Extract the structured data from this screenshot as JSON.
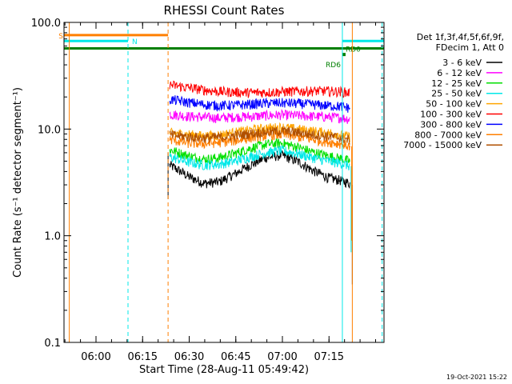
{
  "chart_data": {
    "type": "line",
    "title": "RHESSI Count Rates",
    "ylabel": "Count Rate (s⁻¹ detector segment⁻¹)",
    "xlabel": "Start Time (28-Aug-11 05:49:42)",
    "yscale": "log",
    "ylim": [
      0.1,
      100
    ],
    "xlim_minutes": [
      0,
      103
    ],
    "yticks": [
      {
        "value": 100,
        "label": "100.0"
      },
      {
        "value": 10,
        "label": "10.0"
      },
      {
        "value": 1,
        "label": "1.0"
      },
      {
        "value": 0.1,
        "label": "0.1"
      }
    ],
    "xticks": [
      {
        "minute": 10.3,
        "label": "06:00"
      },
      {
        "minute": 25.3,
        "label": "06:15"
      },
      {
        "minute": 40.3,
        "label": "06:30"
      },
      {
        "minute": 55.3,
        "label": "06:45"
      },
      {
        "minute": 70.3,
        "label": "07:00"
      },
      {
        "minute": 85.3,
        "label": "07:15"
      }
    ],
    "legend": {
      "header": [
        "Det 1f,3f,4f,5f,6f,9f,",
        "FDecim 1, Att 0"
      ],
      "placement": "right",
      "entries": [
        {
          "label": "3 - 6 keV",
          "color": "#000000"
        },
        {
          "label": "6 - 12 keV",
          "color": "#ff00ff"
        },
        {
          "label": "12 - 25 keV",
          "color": "#00e000"
        },
        {
          "label": "25 - 50 keV",
          "color": "#00e8e8"
        },
        {
          "label": "50 - 100 keV",
          "color": "#ffa500"
        },
        {
          "label": "100 - 300 keV",
          "color": "#ff0000"
        },
        {
          "label": "300 - 800 keV",
          "color": "#0000ff"
        },
        {
          "label": "800 - 7000 keV",
          "color": "#ff7f00"
        },
        {
          "label": "7000 - 15000 keV",
          "color": "#b05000"
        }
      ]
    },
    "data_window_minutes": [
      33.5,
      92.8
    ],
    "series": [
      {
        "name": "3 - 6 keV",
        "color": "#000000",
        "x": [
          34,
          40,
          45,
          50,
          55,
          60,
          65,
          70,
          75,
          80,
          85,
          89,
          92
        ],
        "y": [
          4.6,
          3.6,
          3.1,
          3.2,
          3.8,
          4.6,
          5.4,
          5.7,
          5.0,
          4.1,
          3.5,
          3.3,
          3.1
        ]
      },
      {
        "name": "6 - 12 keV",
        "color": "#ff00ff",
        "x": [
          34,
          40,
          45,
          50,
          55,
          60,
          65,
          70,
          75,
          80,
          85,
          89,
          92
        ],
        "y": [
          13.8,
          13.2,
          12.9,
          12.7,
          13.0,
          13.1,
          13.4,
          13.6,
          13.4,
          13.2,
          13.0,
          12.8,
          12.4
        ]
      },
      {
        "name": "12 - 25 keV",
        "color": "#00e000",
        "x": [
          34,
          40,
          45,
          50,
          55,
          60,
          65,
          70,
          75,
          80,
          85,
          89,
          92
        ],
        "y": [
          6.4,
          5.6,
          5.2,
          5.4,
          5.9,
          6.6,
          7.2,
          7.4,
          6.8,
          6.1,
          5.6,
          5.3,
          5.0
        ]
      },
      {
        "name": "25 - 50 keV",
        "color": "#00e8e8",
        "x": [
          34,
          40,
          45,
          50,
          55,
          60,
          65,
          70,
          75,
          80,
          85,
          89,
          92
        ],
        "y": [
          5.5,
          4.9,
          4.6,
          4.7,
          5.0,
          5.5,
          6.0,
          6.3,
          5.9,
          5.4,
          5.0,
          4.8,
          4.5
        ]
      },
      {
        "name": "50 - 100 keV",
        "color": "#ffa500",
        "x": [
          34,
          40,
          45,
          50,
          55,
          60,
          65,
          70,
          75,
          80,
          85,
          89,
          92
        ],
        "y": [
          9.2,
          8.9,
          8.6,
          8.8,
          9.3,
          9.8,
          10.2,
          10.4,
          10.0,
          9.6,
          9.2,
          8.9,
          8.4
        ]
      },
      {
        "name": "100 - 300 keV",
        "color": "#ff0000",
        "x": [
          34,
          40,
          45,
          50,
          55,
          60,
          65,
          70,
          75,
          80,
          85,
          89,
          92
        ],
        "y": [
          26.0,
          24.5,
          23.3,
          22.5,
          22.2,
          22.0,
          22.1,
          22.4,
          22.6,
          22.8,
          22.7,
          22.4,
          22.0
        ]
      },
      {
        "name": "300 - 800 keV",
        "color": "#0000ff",
        "x": [
          34,
          40,
          45,
          50,
          55,
          60,
          65,
          70,
          75,
          80,
          85,
          89,
          92
        ],
        "y": [
          19.0,
          17.8,
          17.0,
          16.6,
          16.8,
          17.1,
          17.5,
          17.6,
          17.4,
          17.0,
          16.6,
          16.3,
          15.8
        ]
      },
      {
        "name": "800 - 7000 keV",
        "color": "#ff7f00",
        "x": [
          34,
          40,
          45,
          50,
          55,
          60,
          65,
          70,
          75,
          80,
          85,
          89,
          92
        ],
        "y": [
          8.0,
          7.4,
          7.3,
          7.5,
          7.8,
          8.3,
          8.7,
          8.9,
          8.5,
          8.0,
          7.6,
          7.3,
          6.9
        ]
      },
      {
        "name": "7000 - 15000 keV",
        "color": "#b05000",
        "x": [
          34,
          40,
          45,
          50,
          55,
          60,
          65,
          70,
          75,
          80,
          85,
          89,
          92
        ],
        "y": [
          8.8,
          8.5,
          8.3,
          8.4,
          8.7,
          9.1,
          9.4,
          9.6,
          9.3,
          8.9,
          8.6,
          8.3,
          7.9
        ]
      }
    ],
    "spikes": [
      {
        "color": "#000000",
        "minute": 33.5,
        "from": 6.0,
        "to": 2.2
      },
      {
        "color": "#000000",
        "minute": 92.8,
        "from": 3.0,
        "to": 0.35
      },
      {
        "color": "#00e8e8",
        "minute": 92.4,
        "from": 4.5,
        "to": 0.7
      },
      {
        "color": "#ff7f00",
        "minute": 92.6,
        "from": 6.9,
        "to": 0.9
      }
    ],
    "status_bars": [
      {
        "label": "S",
        "color": "#ff7f00",
        "from_minute": 0,
        "to_minute": 33.5,
        "level": 76
      },
      {
        "label": "N",
        "color": "#00e8e8",
        "from_minute": 0,
        "to_minute": 20.6,
        "level": 67
      },
      {
        "label": "",
        "color": "#00e8e8",
        "from_minute": 89.6,
        "to_minute": 103,
        "level": 67
      },
      {
        "label": "RD0",
        "color": "#007f00",
        "from_minute": 0,
        "to_minute": 103,
        "level": 57
      },
      {
        "label": "RD6",
        "color": "#007f00",
        "from_minute": 89.6,
        "to_minute": 89.6,
        "level": 50
      }
    ],
    "vertical_markers": [
      {
        "minute": 0,
        "color": "#00e8e8",
        "style": "solid"
      },
      {
        "minute": 1.7,
        "color": "#ff7f00",
        "style": "solid"
      },
      {
        "minute": 20.6,
        "color": "#00e8e8",
        "style": "dashed"
      },
      {
        "minute": 33.5,
        "color": "#ff7f00",
        "style": "dashed"
      },
      {
        "minute": 89.6,
        "color": "#00e8e8",
        "style": "solid"
      },
      {
        "minute": 92.8,
        "color": "#ff7f00",
        "style": "solid"
      },
      {
        "minute": 102.4,
        "color": "#00e8e8",
        "style": "dashed"
      }
    ],
    "footer_timestamp": "19-Oct-2021 15:22"
  }
}
